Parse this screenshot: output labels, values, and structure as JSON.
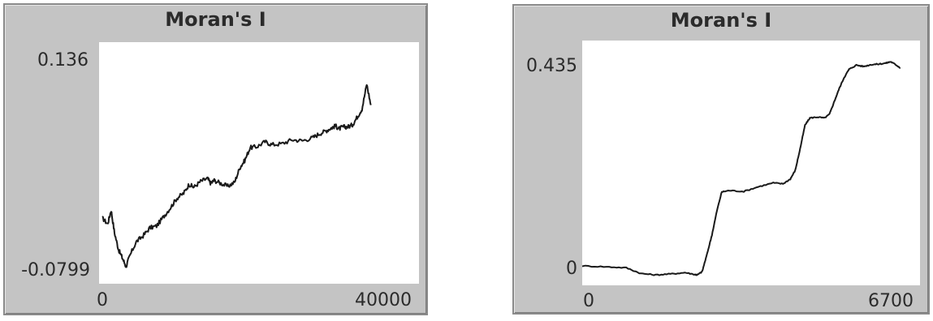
{
  "chart_data": [
    {
      "type": "line",
      "title": "Moran's I",
      "xlabel": "",
      "ylabel": "",
      "xlim": [
        0,
        40000
      ],
      "ylim": [
        -0.0799,
        0.136
      ],
      "y_ticks": [
        "0.136",
        "-0.0799"
      ],
      "x_ticks": [
        "0",
        "40000"
      ],
      "grid": false,
      "line_color": "#1a1a1a",
      "series": [
        {
          "x": [
            0,
            800,
            1300,
            1800,
            2400,
            3000,
            3500,
            4000,
            5000,
            6000,
            7000,
            8000,
            9000,
            10000,
            11000,
            12000,
            12800,
            13500,
            14500,
            15500,
            16000,
            16500,
            17500,
            18500,
            19500,
            20300,
            21000,
            21800,
            22800,
            24000,
            25000,
            26500,
            28000,
            29500,
            31000,
            32000,
            33000,
            33800,
            34400,
            34900,
            35500,
            36200,
            36900,
            37600,
            38300,
            39000,
            39600
          ],
          "y": [
            -0.03,
            -0.036,
            -0.022,
            -0.045,
            -0.062,
            -0.071,
            -0.079,
            -0.069,
            -0.054,
            -0.048,
            -0.04,
            -0.038,
            -0.029,
            -0.02,
            -0.01,
            -0.005,
            0.004,
            0.001,
            0.007,
            0.01,
            0.005,
            0.008,
            0.005,
            0.002,
            0.006,
            0.021,
            0.028,
            0.041,
            0.042,
            0.047,
            0.044,
            0.045,
            0.049,
            0.048,
            0.051,
            0.055,
            0.058,
            0.061,
            0.063,
            0.06,
            0.062,
            0.062,
            0.064,
            0.072,
            0.08,
            0.105,
            0.084
          ]
        }
      ]
    },
    {
      "type": "line",
      "title": "Moran's I",
      "xlabel": "",
      "ylabel": "",
      "xlim": [
        0,
        6700
      ],
      "ylim": [
        0,
        0.435
      ],
      "y_ticks": [
        "0.435",
        "0"
      ],
      "x_ticks": [
        "0",
        "6700"
      ],
      "grid": false,
      "line_color": "#1a1a1a",
      "series": [
        {
          "x": [
            0,
            500,
            900,
            1200,
            1500,
            1800,
            2100,
            2300,
            2350,
            2450,
            2550,
            2650,
            2750,
            2850,
            3000,
            3300,
            3600,
            3900,
            4100,
            4250,
            4350,
            4450,
            4550,
            4650,
            4800,
            4950,
            5050,
            5150,
            5250,
            5350,
            5450,
            5600,
            5750,
            5900,
            6050,
            6200,
            6300,
            6400,
            6500
          ],
          "y": [
            0.0,
            -0.002,
            -0.004,
            -0.016,
            -0.019,
            -0.017,
            -0.014,
            -0.018,
            -0.019,
            -0.012,
            0.025,
            0.065,
            0.115,
            0.155,
            0.158,
            0.156,
            0.166,
            0.174,
            0.172,
            0.182,
            0.2,
            0.245,
            0.295,
            0.31,
            0.312,
            0.31,
            0.318,
            0.345,
            0.372,
            0.395,
            0.412,
            0.421,
            0.418,
            0.422,
            0.423,
            0.425,
            0.428,
            0.422,
            0.415
          ]
        }
      ]
    }
  ]
}
